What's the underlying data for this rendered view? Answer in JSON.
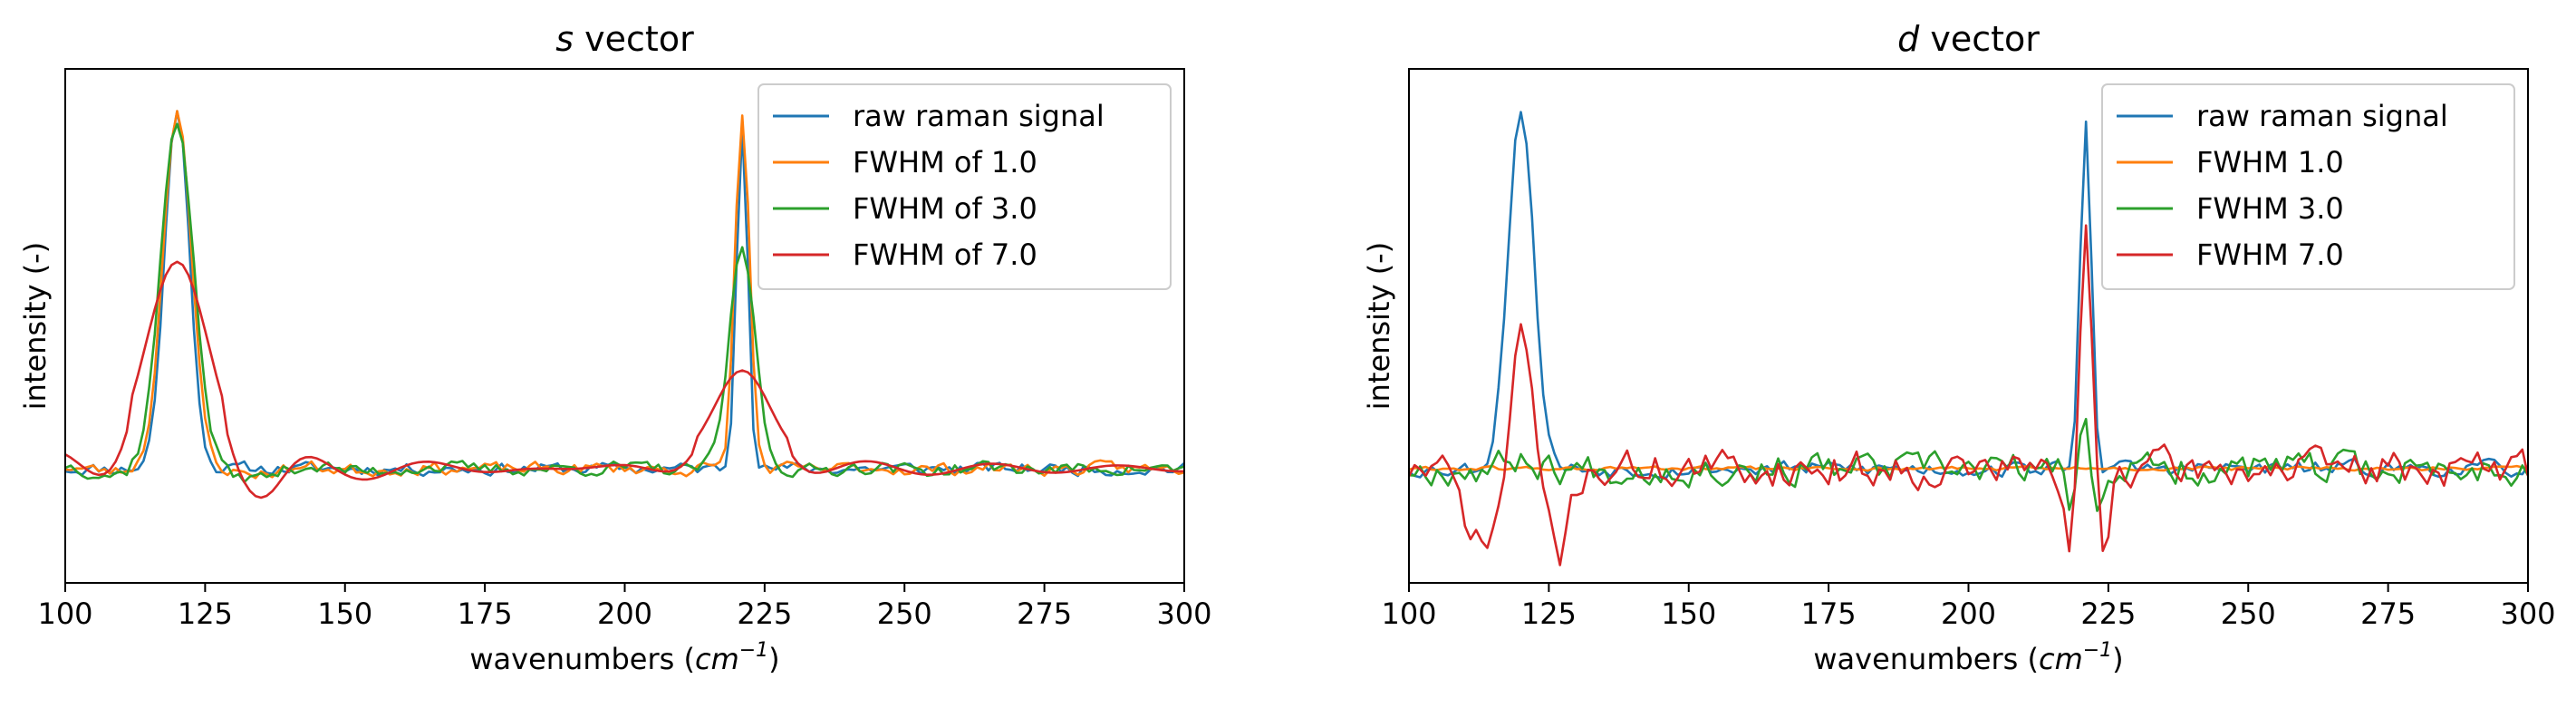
{
  "chart_data": [
    {
      "type": "line",
      "title_italic": "s",
      "title_rest": " vector",
      "xlabel_prefix": "wavenumbers (",
      "xlabel_unit_base": "cm",
      "xlabel_unit_exp": "−1",
      "xlabel_suffix": ")",
      "ylabel": "intensity (-)",
      "xlim": [
        100,
        300
      ],
      "ylim": [
        -0.3,
        1.05
      ],
      "xticks": [
        "100",
        "125",
        "150",
        "175",
        "200",
        "225",
        "250",
        "275",
        "300"
      ],
      "grid": false,
      "legend_position": "top-right",
      "peaks": [
        120,
        221
      ],
      "series": [
        {
          "name": "raw raman signal",
          "color": "#1f77b4",
          "heights": [
            0.95,
            0.92
          ],
          "sigmas": [
            2.2,
            1.0
          ],
          "ringing": 0,
          "noise": 0.012,
          "seed": 11
        },
        {
          "name": "FWHM of 1.0",
          "color": "#ff7f0e",
          "heights": [
            0.95,
            0.93
          ],
          "sigmas": [
            2.5,
            1.3
          ],
          "ringing": 0.01,
          "noise": 0.012,
          "seed": 23
        },
        {
          "name": "FWHM of 3.0",
          "color": "#2ca02c",
          "heights": [
            0.92,
            0.58
          ],
          "sigmas": [
            2.9,
            2.3
          ],
          "ringing": 0.02,
          "noise": 0.013,
          "seed": 37
        },
        {
          "name": "FWHM of 7.0",
          "color": "#d62728",
          "heights": [
            0.55,
            0.27
          ],
          "sigmas": [
            5.5,
            5.0
          ],
          "ringing": 0.075,
          "noise": 0.0,
          "seed": 41
        }
      ]
    },
    {
      "type": "line",
      "title_italic": "d",
      "title_rest": " vector",
      "xlabel_prefix": "wavenumbers (",
      "xlabel_unit_base": "cm",
      "xlabel_unit_exp": "−1",
      "xlabel_suffix": ")",
      "ylabel": "intensity (-)",
      "xlim": [
        100,
        300
      ],
      "ylim": [
        -0.3,
        1.05
      ],
      "xticks": [
        "100",
        "125",
        "150",
        "175",
        "200",
        "225",
        "250",
        "275",
        "300"
      ],
      "grid": false,
      "legend_position": "top-right",
      "peaks": [
        120,
        221
      ],
      "series": [
        {
          "name": "raw raman signal",
          "color": "#1f77b4",
          "heights": [
            0.95,
            0.92
          ],
          "sigmas": [
            2.3,
            1.0
          ],
          "ringing": 0,
          "noise": 0.015,
          "seed": 53
        },
        {
          "name": "FWHM 1.0",
          "color": "#ff7f0e",
          "heights": [
            0,
            0
          ],
          "sigmas": [
            2,
            1
          ],
          "ringing": 0,
          "noise": 0.004,
          "seed": 61
        },
        {
          "name": "FWHM 3.0",
          "color": "#2ca02c",
          "heights": [
            0.03,
            0.32
          ],
          "sigmas": [
            2.5,
            1.0
          ],
          "ringing": 0,
          "noise": 0.03,
          "seed": 67,
          "dips": [
            [
              222,
              -0.2,
              1.4
            ],
            [
              218.3,
              -0.15,
              0.8
            ]
          ]
        },
        {
          "name": "FWHM 7.0",
          "color": "#d62728",
          "heights": [
            0.38,
            0.64
          ],
          "sigmas": [
            1.6,
            0.9
          ],
          "ringing": 0,
          "noise": 0.035,
          "seed": 71,
          "dips": [
            [
              113,
              -0.2,
              3.0
            ],
            [
              127,
              -0.22,
              1.8
            ],
            [
              218,
              -0.21,
              1.0
            ],
            [
              224.3,
              -0.2,
              0.9
            ]
          ]
        }
      ]
    }
  ]
}
